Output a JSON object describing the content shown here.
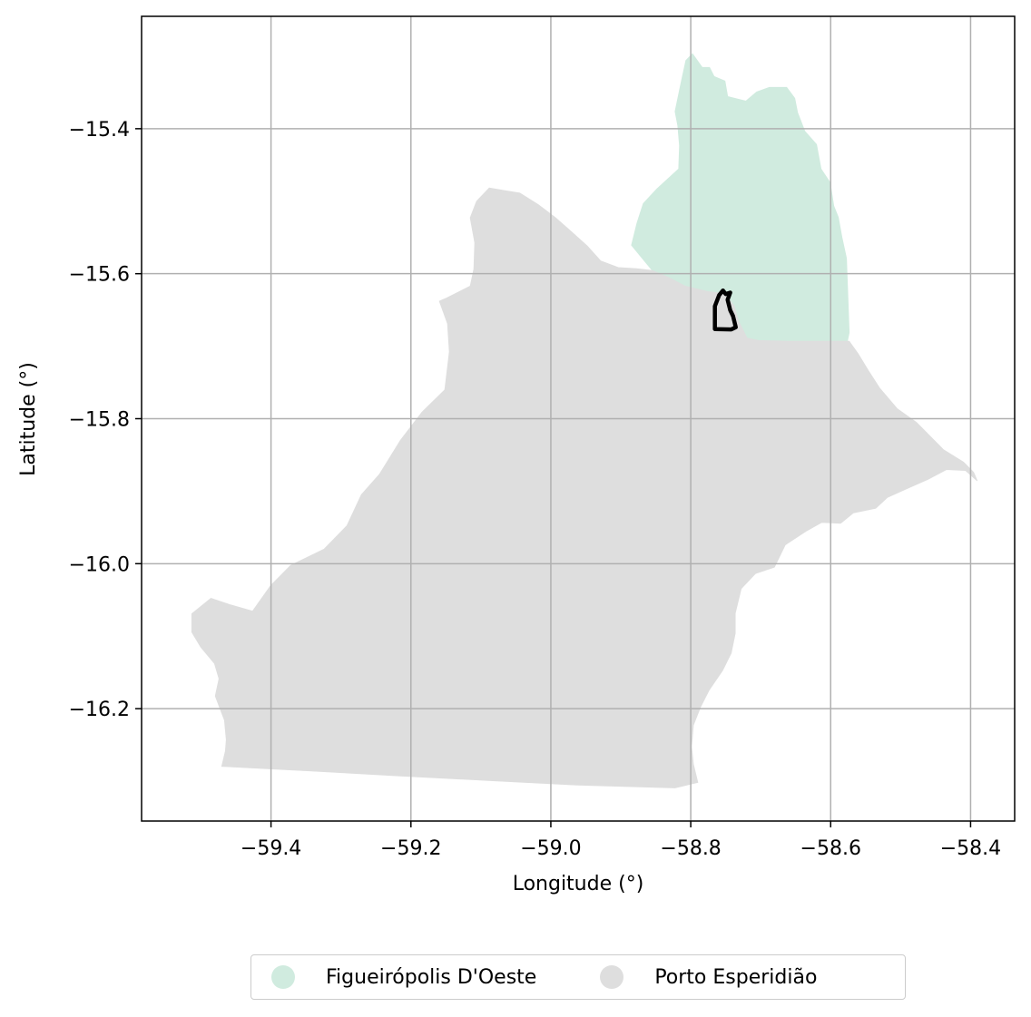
{
  "chart_data": {
    "type": "map",
    "xlabel": "Longitude (°)",
    "ylabel": "Latitude (°)",
    "xlim": [
      -59.585,
      -58.337
    ],
    "ylim": [
      -16.355,
      -15.245
    ],
    "xticks": [
      -59.4,
      -59.2,
      -59.0,
      -58.8,
      -58.6,
      -58.4
    ],
    "yticks": [
      -15.4,
      -15.6,
      -15.8,
      -16.0,
      -16.2
    ],
    "xtick_labels": [
      "−59.4",
      "−59.2",
      "−59.0",
      "−58.8",
      "−58.6",
      "−58.4"
    ],
    "ytick_labels": [
      "−15.4",
      "−15.6",
      "−15.8",
      "−16.0",
      "−16.2"
    ],
    "grid": true,
    "legend_position": "bottom-center",
    "regions": [
      {
        "name": "Figueirópolis D'Oeste",
        "color": "#d0ebdf",
        "outline": [
          [
            -58.7975,
            -15.2965
          ],
          [
            -58.7835,
            -15.3154
          ],
          [
            -58.7732,
            -15.3154
          ],
          [
            -58.7667,
            -15.3279
          ],
          [
            -58.7511,
            -15.3342
          ],
          [
            -58.7472,
            -15.3556
          ],
          [
            -58.7343,
            -15.3587
          ],
          [
            -58.7213,
            -15.3619
          ],
          [
            -58.7058,
            -15.3493
          ],
          [
            -58.6876,
            -15.343
          ],
          [
            -58.6629,
            -15.343
          ],
          [
            -58.6513,
            -15.358
          ],
          [
            -58.6473,
            -15.3776
          ],
          [
            -58.637,
            -15.4034
          ],
          [
            -58.6202,
            -15.4217
          ],
          [
            -58.6137,
            -15.4555
          ],
          [
            -58.6007,
            -15.4744
          ],
          [
            -58.5956,
            -15.5065
          ],
          [
            -58.5891,
            -15.5222
          ],
          [
            -58.5839,
            -15.5498
          ],
          [
            -58.5774,
            -15.5788
          ],
          [
            -58.5761,
            -15.6128
          ],
          [
            -58.5748,
            -15.6468
          ],
          [
            -58.5735,
            -15.6813
          ],
          [
            -58.5761,
            -15.6933
          ],
          [
            -58.6176,
            -15.6933
          ],
          [
            -58.6604,
            -15.6933
          ],
          [
            -58.7032,
            -15.6921
          ],
          [
            -58.7195,
            -15.6889
          ],
          [
            -58.7317,
            -15.6656
          ],
          [
            -58.7381,
            -15.6442
          ],
          [
            -58.7524,
            -15.6272
          ],
          [
            -58.7757,
            -15.6247
          ],
          [
            -58.8082,
            -15.6171
          ],
          [
            -58.8302,
            -15.6058
          ],
          [
            -58.8549,
            -15.5957
          ],
          [
            -58.8678,
            -15.5805
          ],
          [
            -58.8847,
            -15.5607
          ],
          [
            -58.8769,
            -15.5303
          ],
          [
            -58.8679,
            -15.5032
          ],
          [
            -58.8485,
            -15.4832
          ],
          [
            -58.8173,
            -15.4555
          ],
          [
            -58.8161,
            -15.4234
          ],
          [
            -58.8186,
            -15.3958
          ],
          [
            -58.8225,
            -15.3763
          ],
          [
            -58.8135,
            -15.3348
          ],
          [
            -58.807,
            -15.3059
          ]
        ]
      },
      {
        "name": "Porto Esperidião",
        "color": "#dedede",
        "outline": [
          [
            -59.088,
            -15.4818
          ],
          [
            -59.1062,
            -15.5001
          ],
          [
            -59.1153,
            -15.5228
          ],
          [
            -59.1088,
            -15.5574
          ],
          [
            -59.1101,
            -15.5938
          ],
          [
            -59.1153,
            -15.6171
          ],
          [
            -59.149,
            -15.6335
          ],
          [
            -59.1593,
            -15.6379
          ],
          [
            -59.1477,
            -15.6688
          ],
          [
            -59.1451,
            -15.7078
          ],
          [
            -59.1516,
            -15.7601
          ],
          [
            -59.184,
            -15.7909
          ],
          [
            -59.215,
            -15.8299
          ],
          [
            -59.2449,
            -15.8765
          ],
          [
            -59.2708,
            -15.9048
          ],
          [
            -59.2916,
            -15.9477
          ],
          [
            -59.324,
            -15.9798
          ],
          [
            -59.372,
            -16.0024
          ],
          [
            -59.4004,
            -16.0301
          ],
          [
            -59.4264,
            -16.0654
          ],
          [
            -59.4588,
            -16.0566
          ],
          [
            -59.4859,
            -16.0477
          ],
          [
            -59.5132,
            -16.0692
          ],
          [
            -59.5132,
            -16.0944
          ],
          [
            -59.5003,
            -16.1152
          ],
          [
            -59.4808,
            -16.1378
          ],
          [
            -59.4744,
            -16.1586
          ],
          [
            -59.4796,
            -16.1825
          ],
          [
            -59.4666,
            -16.216
          ],
          [
            -59.464,
            -16.243
          ],
          [
            -59.4652,
            -16.2588
          ],
          [
            -59.4704,
            -16.2796
          ],
          [
            -59.3422,
            -16.2859
          ],
          [
            -59.2148,
            -16.2928
          ],
          [
            -59.0893,
            -16.2991
          ],
          [
            -58.9623,
            -16.3054
          ],
          [
            -58.8225,
            -16.3093
          ],
          [
            -58.7899,
            -16.3017
          ],
          [
            -58.7963,
            -16.2765
          ],
          [
            -58.7989,
            -16.2524
          ],
          [
            -58.7963,
            -16.2228
          ],
          [
            -58.786,
            -16.1977
          ],
          [
            -58.7737,
            -16.1743
          ],
          [
            -58.7545,
            -16.1473
          ],
          [
            -58.7422,
            -16.1234
          ],
          [
            -58.7364,
            -16.0962
          ],
          [
            -58.7364,
            -16.0685
          ],
          [
            -58.7279,
            -16.0345
          ],
          [
            -58.7077,
            -16.0137
          ],
          [
            -58.6804,
            -16.0049
          ],
          [
            -58.6648,
            -15.974
          ],
          [
            -58.635,
            -15.9551
          ],
          [
            -58.613,
            -15.9432
          ],
          [
            -58.5858,
            -15.9444
          ],
          [
            -58.5675,
            -15.9299
          ],
          [
            -58.5356,
            -15.9237
          ],
          [
            -58.5188,
            -15.9085
          ],
          [
            -58.4929,
            -15.8972
          ],
          [
            -58.4615,
            -15.884
          ],
          [
            -58.4346,
            -15.8702
          ],
          [
            -58.4073,
            -15.8714
          ],
          [
            -58.3905,
            -15.8858
          ],
          [
            -58.3956,
            -15.8739
          ],
          [
            -58.4101,
            -15.8599
          ],
          [
            -58.4384,
            -15.8431
          ],
          [
            -58.4527,
            -15.8291
          ],
          [
            -58.4773,
            -15.8052
          ],
          [
            -58.5047,
            -15.7864
          ],
          [
            -58.5302,
            -15.7576
          ],
          [
            -58.5461,
            -15.7337
          ],
          [
            -58.5609,
            -15.7102
          ],
          [
            -58.5735,
            -15.6933
          ],
          [
            -58.5761,
            -15.6933
          ],
          [
            -58.6176,
            -15.6933
          ],
          [
            -58.6604,
            -15.6933
          ],
          [
            -58.7032,
            -15.6921
          ],
          [
            -58.7195,
            -15.6889
          ],
          [
            -58.7317,
            -15.6656
          ],
          [
            -58.7381,
            -15.6442
          ],
          [
            -58.7524,
            -15.6272
          ],
          [
            -58.7757,
            -15.6247
          ],
          [
            -58.8082,
            -15.6171
          ],
          [
            -58.8302,
            -15.6058
          ],
          [
            -58.8549,
            -15.5957
          ],
          [
            -58.8774,
            -15.5932
          ],
          [
            -58.9036,
            -15.5915
          ],
          [
            -58.9287,
            -15.5824
          ],
          [
            -58.9479,
            -15.5619
          ],
          [
            -58.9711,
            -15.5416
          ],
          [
            -58.9939,
            -15.5222
          ],
          [
            -59.018,
            -15.5048
          ],
          [
            -59.0444,
            -15.4888
          ],
          [
            -59.0646,
            -15.4856
          ]
        ]
      }
    ],
    "highlight": {
      "color": "#000000",
      "outline": [
        [
          -58.7655,
          -15.6753
        ],
        [
          -58.7655,
          -15.6448
        ],
        [
          -58.7594,
          -15.6296
        ],
        [
          -58.754,
          -15.6232
        ],
        [
          -58.75,
          -15.628
        ],
        [
          -58.7436,
          -15.6261
        ],
        [
          -58.7474,
          -15.636
        ],
        [
          -58.7436,
          -15.6504
        ],
        [
          -58.7395,
          -15.6585
        ],
        [
          -58.7356,
          -15.6738
        ],
        [
          -58.7421,
          -15.6769
        ],
        [
          -58.7655,
          -15.6763
        ],
        [
          -58.7655,
          -15.6753
        ]
      ]
    },
    "legend": [
      {
        "label": "Figueirópolis D'Oeste",
        "color": "#d0ebdf"
      },
      {
        "label": "Porto Esperidião",
        "color": "#dedede"
      }
    ]
  }
}
